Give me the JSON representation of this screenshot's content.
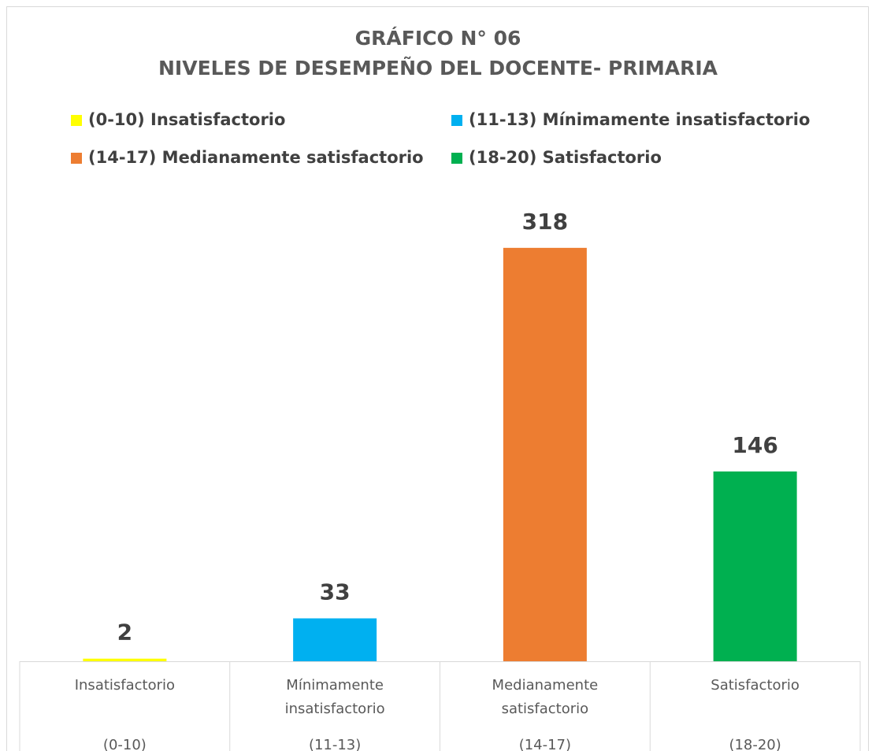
{
  "chart_data": {
    "type": "bar",
    "title": "GRÁFICO N° 06",
    "subtitle": "NIVELES DE DESEMPEÑO DEL DOCENTE- PRIMARIA",
    "legend_entries": [
      "(0-10) Insatisfactorio",
      "(11-13) Mínimamente insatisfactorio",
      "(14-17) Medianamente satisfactorio",
      "(18-20) Satisfactorio"
    ],
    "colors": [
      "#ffff00",
      "#00b0f0",
      "#ed7d31",
      "#00b050"
    ],
    "categories": [
      "Insatisfactorio",
      "Mínimamente insatisfactorio",
      "Medianamente satisfactorio",
      "Satisfactorio"
    ],
    "category_ranges": [
      "(0-10)",
      "(11-13)",
      "(14-17)",
      "(18-20)"
    ],
    "values": [
      2,
      33,
      318,
      146
    ],
    "ylim": [
      0,
      350
    ]
  }
}
